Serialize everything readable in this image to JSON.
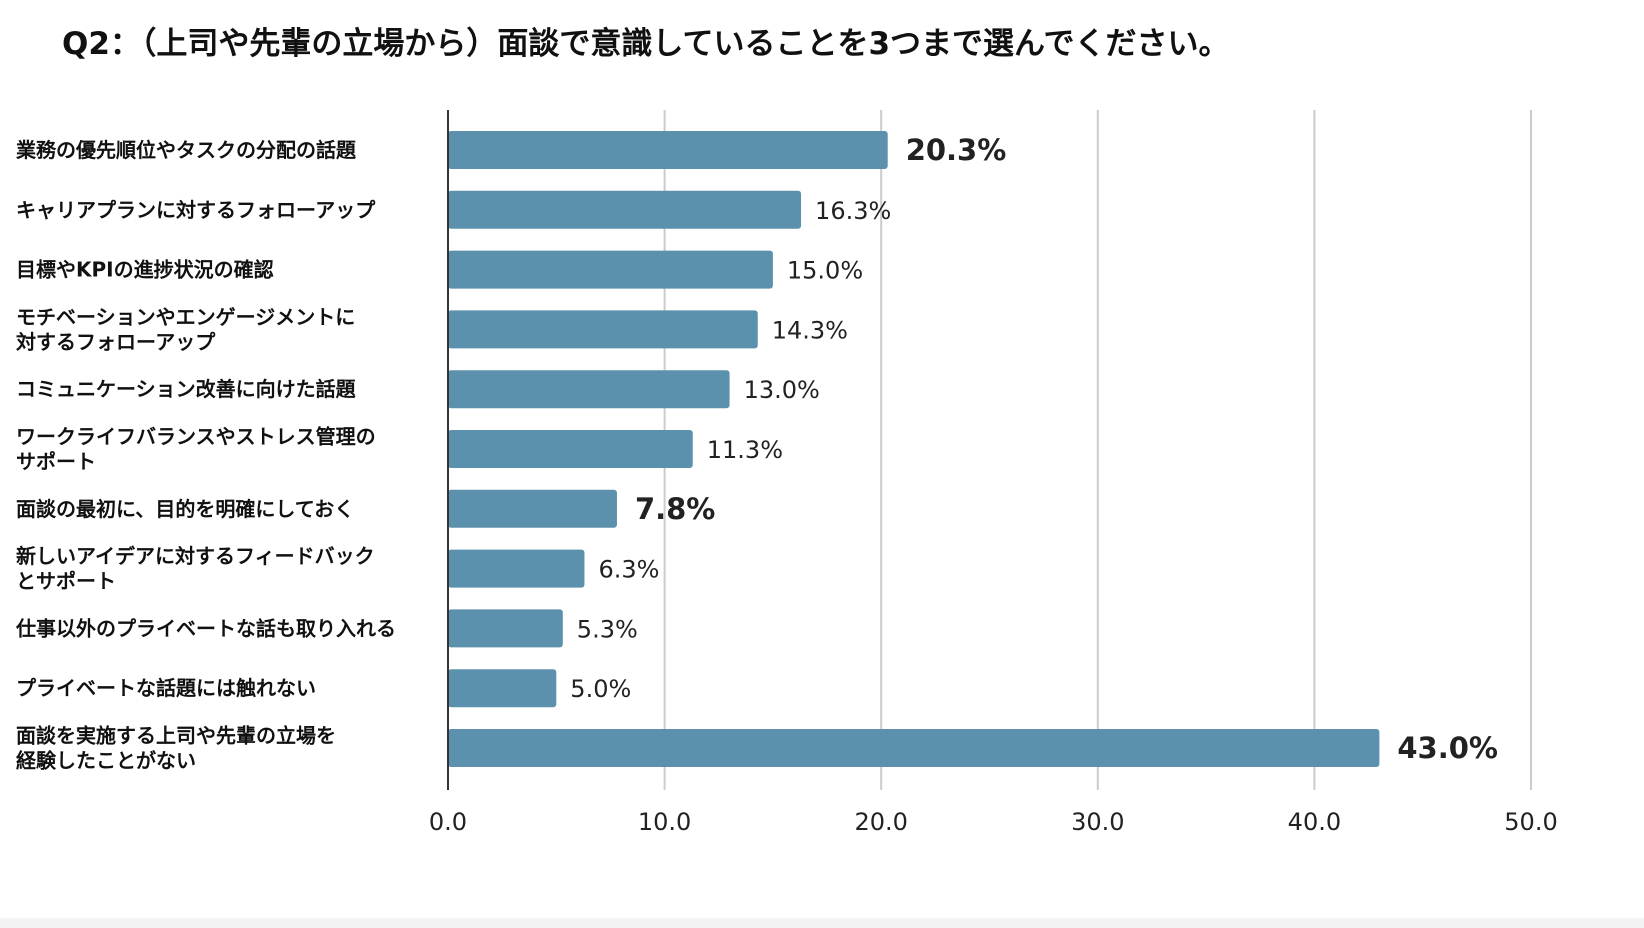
{
  "chart_data": {
    "type": "bar",
    "orientation": "horizontal",
    "title": "Q2：（上司や先輩の立場から）面談で意識していることを3つまで選んでください。",
    "categories": [
      [
        "業務の優先順位やタスクの分配の話題"
      ],
      [
        "キャリアプランに対するフォローアップ"
      ],
      [
        "目標やKPIの進捗状況の確認"
      ],
      [
        "モチベーションやエンゲージメントに",
        "対するフォローアップ"
      ],
      [
        "コミュニケーション改善に向けた話題"
      ],
      [
        "ワークライフバランスやストレス管理の",
        "サポート"
      ],
      [
        "面談の最初に、目的を明確にしておく"
      ],
      [
        "新しいアイデアに対するフィードバック",
        "とサポート"
      ],
      [
        "仕事以外のプライベートな話も取り入れる"
      ],
      [
        "プライベートな話題には触れない"
      ],
      [
        "面談を実施する上司や先輩の立場を",
        "経験したことがない"
      ]
    ],
    "values": [
      20.3,
      16.3,
      15.0,
      14.3,
      13.0,
      11.3,
      7.8,
      6.3,
      5.3,
      5.0,
      43.0
    ],
    "value_labels": [
      "20.3%",
      "16.3%",
      "15.0%",
      "14.3%",
      "13.0%",
      "11.3%",
      "7.8%",
      "6.3%",
      "5.3%",
      "5.0%",
      "43.0%"
    ],
    "highlighted": [
      true,
      false,
      false,
      false,
      false,
      false,
      true,
      false,
      false,
      false,
      true
    ],
    "xlim": [
      0,
      50
    ],
    "xticks": [
      0,
      10,
      20,
      30,
      40,
      50
    ],
    "xtick_labels": [
      "0.0",
      "10.0",
      "20.0",
      "30.0",
      "40.0",
      "50.0"
    ],
    "xlabel": "",
    "ylabel": "",
    "grid": true,
    "colors": {
      "bar": "#5b91ad",
      "highlight_label": "#1a1acc",
      "normal_label": "#222222",
      "gridline": "#cccccc",
      "axis": "#333333"
    }
  }
}
